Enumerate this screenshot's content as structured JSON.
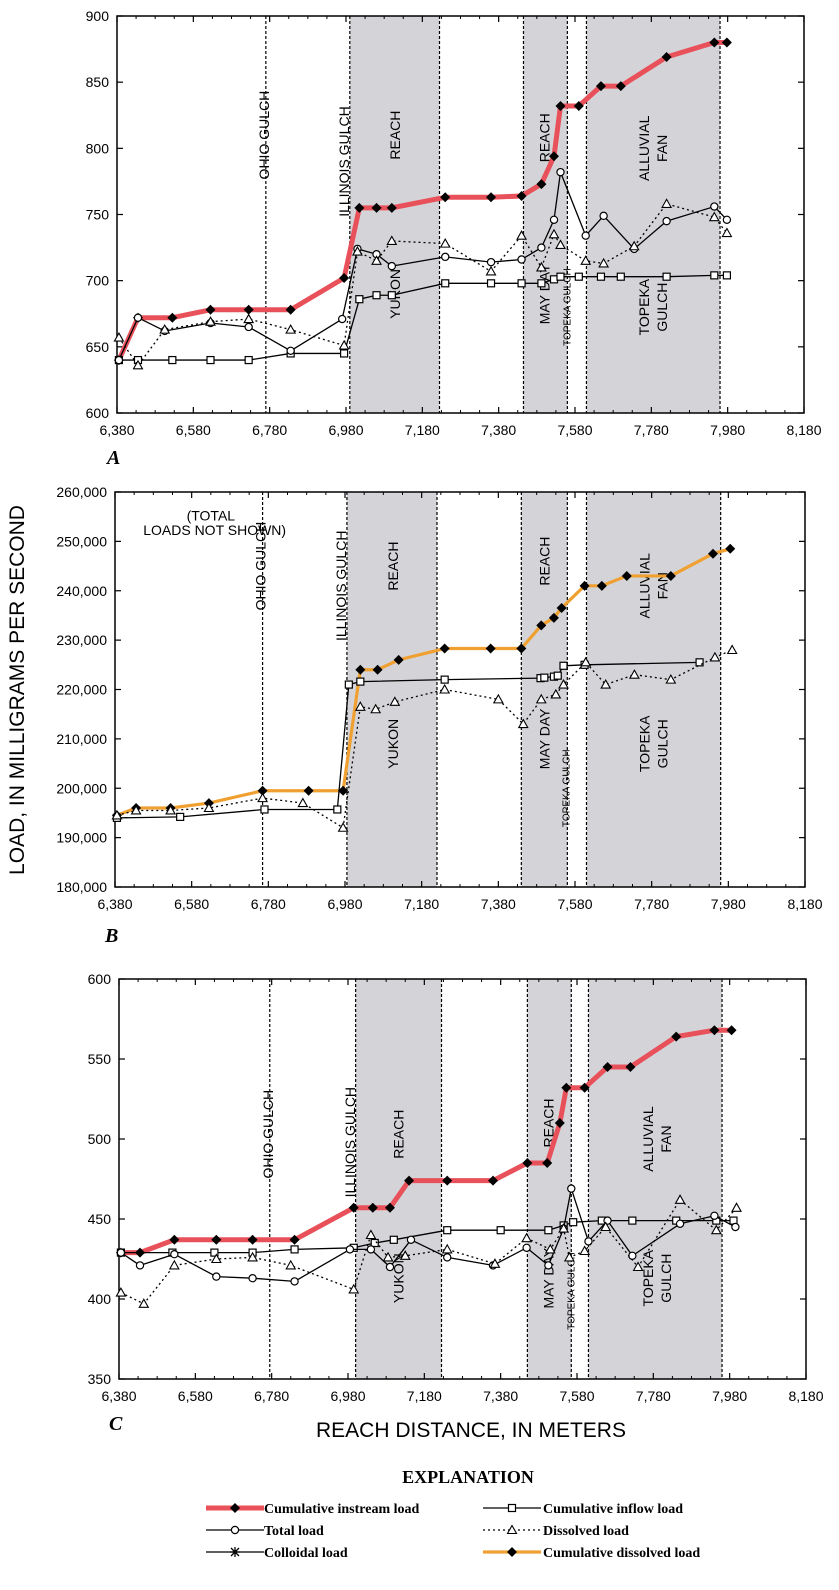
{
  "figure": {
    "ylabel": "LOAD, IN MILLIGRAMS PER SECOND",
    "xlabel": "REACH DISTANCE, IN METERS",
    "explanation_title": "EXPLANATION"
  },
  "legend": [
    {
      "label": "Cumulative instream load",
      "style": "cum_instream"
    },
    {
      "label": "Cumulative inflow load",
      "style": "cum_inflow"
    },
    {
      "label": "Total load",
      "style": "total"
    },
    {
      "label": "Dissolved load",
      "style": "dissolved"
    },
    {
      "label": "Colloidal load",
      "style": "colloidal"
    },
    {
      "label": "Cumulative dissolved load",
      "style": "cum_dissolved"
    }
  ],
  "colors": {
    "cum_instream": "#e8515a",
    "cum_dissolved": "#f0a030",
    "shade": "#d4d4d8",
    "ink": "#000000"
  },
  "chart_data": [
    {
      "type": "line",
      "panel": "A",
      "xlim": [
        6380,
        8180
      ],
      "ylim": [
        600,
        900
      ],
      "xticks": [
        6380,
        6580,
        6780,
        6980,
        7180,
        7380,
        7580,
        7780,
        7980,
        8180
      ],
      "yticks": [
        600,
        650,
        700,
        750,
        800,
        850,
        900
      ],
      "xtick_labels": [
        "6,380",
        "6,580",
        "6,780",
        "6,980",
        "7,180",
        "7,380",
        "7,580",
        "7,780",
        "7,980",
        "8,180"
      ],
      "ytick_labels": [
        "600",
        "650",
        "700",
        "750",
        "800",
        "850",
        "900"
      ],
      "shaded": [
        [
          6990,
          7225
        ],
        [
          7445,
          7560
        ],
        [
          7610,
          7960
        ]
      ],
      "vlines": [
        6770,
        6990,
        7225,
        7445,
        7560,
        7610,
        7960
      ],
      "labels": [
        {
          "text": "OHIO GULCH",
          "x": 6765,
          "y": 810
        },
        {
          "text": "ILLINOIS GULCH",
          "x": 6975,
          "y": 790
        },
        {
          "text": "REACH",
          "x": 7108,
          "y": 810
        },
        {
          "text": "YUKON",
          "x": 7108,
          "y": 690
        },
        {
          "text": "REACH",
          "x": 7500,
          "y": 808
        },
        {
          "text": "MAY DAY",
          "x": 7500,
          "y": 690
        },
        {
          "text": "TOPEKA GULCH",
          "x": 7555,
          "y": 680
        },
        {
          "text": "ALLUVIAL",
          "x": 7785,
          "y": 800
        },
        {
          "text": "FAN",
          "x": 7785,
          "y": 800
        },
        {
          "text": "TOPEKA",
          "x": 7785,
          "y": 680
        },
        {
          "text": "GULCH",
          "x": 7785,
          "y": 680
        }
      ],
      "series": [
        {
          "style": "cum_instream",
          "x": [
            6385,
            6435,
            6525,
            6625,
            6725,
            6835,
            6975,
            7015,
            7060,
            7100,
            7240,
            7360,
            7440,
            7492,
            7525,
            7542,
            7590,
            7648,
            7700,
            7820,
            7945,
            7978
          ],
          "y": [
            640,
            672,
            672,
            678,
            678,
            678,
            702,
            755,
            755,
            755,
            763,
            763,
            764,
            773,
            794,
            832,
            832,
            847,
            847,
            869,
            880,
            880
          ]
        },
        {
          "style": "cum_inflow",
          "x": [
            6385,
            6435,
            6525,
            6625,
            6725,
            6835,
            6975,
            7015,
            7060,
            7100,
            7240,
            7360,
            7440,
            7492,
            7525,
            7542,
            7590,
            7648,
            7700,
            7820,
            7945,
            7978
          ],
          "y": [
            640,
            640,
            640,
            640,
            640,
            645,
            645,
            686,
            689,
            689,
            698,
            698,
            698,
            698,
            701,
            703,
            703,
            703,
            703,
            703,
            704,
            704
          ]
        },
        {
          "style": "total",
          "x": [
            6385,
            6435,
            6505,
            6625,
            6725,
            6835,
            6970,
            7010,
            7060,
            7100,
            7240,
            7360,
            7440,
            7492,
            7525,
            7542,
            7608,
            7655,
            7735,
            7820,
            7945,
            7978
          ],
          "y": [
            640,
            672,
            662,
            668,
            665,
            647,
            671,
            724,
            720,
            711,
            718,
            714,
            716,
            725,
            746,
            782,
            734,
            749,
            724,
            745,
            756,
            746
          ]
        },
        {
          "style": "dissolved",
          "x": [
            6385,
            6435,
            6505,
            6625,
            6725,
            6835,
            6975,
            7010,
            7060,
            7100,
            7240,
            7360,
            7440,
            7492,
            7525,
            7542,
            7608,
            7655,
            7735,
            7820,
            7945,
            7978
          ],
          "y": [
            657,
            636,
            663,
            669,
            671,
            663,
            651,
            722,
            715,
            730,
            728,
            707,
            734,
            710,
            735,
            727,
            715,
            713,
            726,
            758,
            748,
            736
          ]
        }
      ]
    },
    {
      "type": "line",
      "panel": "B",
      "xlim": [
        6380,
        8180
      ],
      "ylim": [
        180000,
        260000
      ],
      "xticks": [
        6380,
        6580,
        6780,
        6980,
        7180,
        7380,
        7580,
        7780,
        7980,
        8180
      ],
      "yticks": [
        180000,
        190000,
        200000,
        210000,
        220000,
        230000,
        240000,
        250000,
        260000
      ],
      "xtick_labels": [
        "6,380",
        "6,580",
        "6,780",
        "6,980",
        "7,180",
        "7,380",
        "7,580",
        "7,780",
        "7,980",
        "8,180"
      ],
      "ytick_labels": [
        "180,000",
        "190,000",
        "200,000",
        "210,000",
        "220,000",
        "230,000",
        "240,000",
        "250,000",
        "260,000"
      ],
      "shaded": [
        [
          6985,
          7220
        ],
        [
          7440,
          7560
        ],
        [
          7610,
          7960
        ]
      ],
      "vlines": [
        6765,
        6985,
        7220,
        7440,
        7560,
        7610,
        7960
      ],
      "note": "(TOTAL LOADS NOT SHOWN)",
      "labels": [
        {
          "text": "OHIO GULCH",
          "x": 6760,
          "y": 245000
        },
        {
          "text": "ILLINOIS GULCH",
          "x": 6970,
          "y": 241000
        },
        {
          "text": "REACH",
          "x": 7105,
          "y": 245000
        },
        {
          "text": "YUKON",
          "x": 7105,
          "y": 209000
        },
        {
          "text": "REACH",
          "x": 7500,
          "y": 246000
        },
        {
          "text": "MAY DAY",
          "x": 7500,
          "y": 210000
        },
        {
          "text": "TOPEKA GULCH",
          "x": 7552,
          "y": 200000
        },
        {
          "text": "ALLUVIAL",
          "x": 7785,
          "y": 241000
        },
        {
          "text": "FAN",
          "x": 7785,
          "y": 241000
        },
        {
          "text": "TOPEKA",
          "x": 7785,
          "y": 209000
        },
        {
          "text": "GULCH",
          "x": 7785,
          "y": 209000
        }
      ],
      "series": [
        {
          "style": "cum_dissolved",
          "x": [
            6385,
            6435,
            6525,
            6625,
            6765,
            6885,
            6975,
            7020,
            7065,
            7120,
            7240,
            7360,
            7440,
            7492,
            7525,
            7545,
            7605,
            7650,
            7715,
            7830,
            7940,
            7985
          ],
          "y": [
            194500,
            196000,
            196000,
            197000,
            199500,
            199500,
            199500,
            224000,
            224000,
            226000,
            228300,
            228300,
            228300,
            233000,
            234500,
            236500,
            241000,
            241000,
            243000,
            243000,
            247500,
            248500
          ]
        },
        {
          "style": "cum_inflow",
          "x": [
            6385,
            6550,
            6770,
            6960,
            6990,
            7020,
            7240,
            7490,
            7500,
            7525,
            7535,
            7550,
            7605,
            7905
          ],
          "y": [
            194000,
            194200,
            195700,
            195700,
            221000,
            221600,
            222000,
            222300,
            222400,
            222600,
            222800,
            224800,
            225000,
            225500
          ]
        },
        {
          "style": "dissolved",
          "x": [
            6385,
            6435,
            6525,
            6625,
            6765,
            6870,
            6975,
            7020,
            7060,
            7110,
            7240,
            7380,
            7445,
            7492,
            7530,
            7550,
            7608,
            7660,
            7735,
            7830,
            7945,
            7990
          ],
          "y": [
            194500,
            195500,
            195500,
            196000,
            198000,
            197000,
            192000,
            216500,
            216000,
            217500,
            220000,
            218000,
            213000,
            218000,
            219000,
            221000,
            225500,
            221000,
            223000,
            222000,
            226500,
            228000
          ]
        }
      ]
    },
    {
      "type": "line",
      "panel": "C",
      "xlim": [
        6380,
        8180
      ],
      "ylim": [
        350,
        600
      ],
      "xticks": [
        6380,
        6580,
        6780,
        6980,
        7180,
        7380,
        7580,
        7780,
        7980,
        8180
      ],
      "yticks": [
        350,
        400,
        450,
        500,
        550,
        600
      ],
      "xtick_labels": [
        "6,380",
        "6,580",
        "6,780",
        "6,980",
        "7,180",
        "7,380",
        "7,580",
        "7,780",
        "7,980",
        "8,180"
      ],
      "ytick_labels": [
        "350",
        "400",
        "450",
        "500",
        "550",
        "600"
      ],
      "shaded": [
        [
          7000,
          7225
        ],
        [
          7450,
          7565
        ],
        [
          7610,
          7960
        ]
      ],
      "vlines": [
        6775,
        7000,
        7225,
        7450,
        7565,
        7610,
        7960
      ],
      "labels": [
        {
          "text": "OHIO GULCH",
          "x": 6770,
          "y": 503
        },
        {
          "text": "ILLINOIS GULCH",
          "x": 6985,
          "y": 498
        },
        {
          "text": "REACH",
          "x": 7112,
          "y": 503
        },
        {
          "text": "YUKON",
          "x": 7112,
          "y": 413
        },
        {
          "text": "REACH",
          "x": 7505,
          "y": 510
        },
        {
          "text": "MAY DAY",
          "x": 7505,
          "y": 413
        },
        {
          "text": "TOPEKA GULCH",
          "x": 7560,
          "y": 405
        },
        {
          "text": "ALLUVIAL",
          "x": 7790,
          "y": 500
        },
        {
          "text": "FAN",
          "x": 7790,
          "y": 500
        },
        {
          "text": "TOPEKA",
          "x": 7790,
          "y": 413
        },
        {
          "text": "GULCH",
          "x": 7790,
          "y": 413
        }
      ],
      "series": [
        {
          "style": "cum_instream",
          "x": [
            6385,
            6435,
            6525,
            6635,
            6730,
            6840,
            6995,
            7045,
            7090,
            7140,
            7240,
            7360,
            7450,
            7502,
            7535,
            7552,
            7600,
            7660,
            7720,
            7840,
            7940,
            7985
          ],
          "y": [
            429,
            429,
            437,
            437,
            437,
            437,
            457,
            457,
            457,
            474,
            474,
            474,
            485,
            485,
            510,
            532,
            532,
            545,
            545,
            564,
            568,
            568
          ]
        },
        {
          "style": "cum_inflow",
          "x": [
            6385,
            6520,
            6630,
            6730,
            6840,
            6995,
            7050,
            7100,
            7240,
            7380,
            7505,
            7545,
            7570,
            7645,
            7725,
            7840,
            7945,
            7990
          ],
          "y": [
            429,
            429,
            429,
            429,
            431,
            432,
            435,
            437,
            443,
            443,
            443,
            446,
            448,
            449,
            449,
            449,
            449,
            449
          ]
        },
        {
          "style": "total",
          "x": [
            6385,
            6435,
            6525,
            6635,
            6730,
            6840,
            6985,
            7040,
            7090,
            7145,
            7240,
            7360,
            7448,
            7505,
            7545,
            7565,
            7610,
            7660,
            7725,
            7850,
            7940,
            7995
          ],
          "y": [
            429,
            421,
            428,
            414,
            413,
            411,
            431,
            431,
            420,
            437,
            426,
            421,
            432,
            421,
            444,
            469,
            436,
            449,
            427,
            447,
            452,
            445
          ]
        },
        {
          "style": "dissolved",
          "x": [
            6385,
            6445,
            6525,
            6635,
            6730,
            6830,
            6995,
            7040,
            7085,
            7130,
            7240,
            7365,
            7448,
            7510,
            7545,
            7560,
            7600,
            7655,
            7740,
            7850,
            7945,
            7998
          ],
          "y": [
            404,
            397,
            421,
            425,
            426,
            421,
            406,
            440,
            426,
            427,
            431,
            422,
            438,
            431,
            444,
            426,
            430,
            445,
            420,
            462,
            443,
            457
          ]
        }
      ]
    }
  ]
}
